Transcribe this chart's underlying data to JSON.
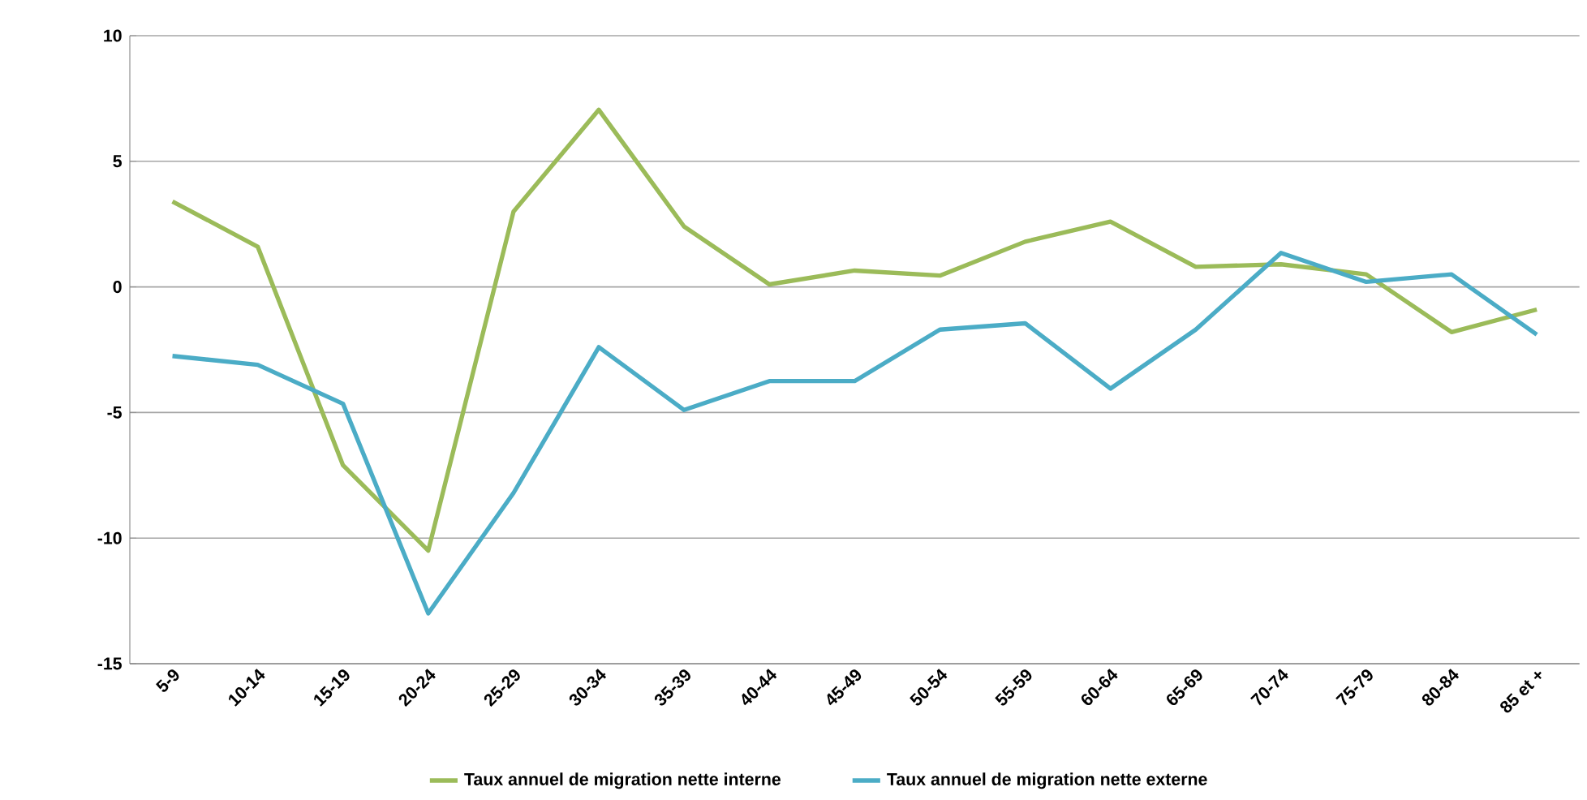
{
  "chart_data": {
    "type": "line",
    "categories": [
      "5-9",
      "10-14",
      "15-19",
      "20-24",
      "25-29",
      "30-34",
      "35-39",
      "40-44",
      "45-49",
      "50-54",
      "55-59",
      "60-64",
      "65-69",
      "70-74",
      "75-79",
      "80-84",
      "85 et +"
    ],
    "series": [
      {
        "name": "Taux annuel de migration nette interne",
        "color": "#9bbb59",
        "values": [
          3.4,
          1.6,
          -7.1,
          -10.5,
          3.0,
          7.05,
          2.4,
          0.1,
          0.65,
          0.45,
          1.8,
          2.6,
          0.8,
          0.9,
          0.5,
          -1.8,
          -0.9
        ]
      },
      {
        "name": "Taux annuel de migration nette externe",
        "color": "#4bacc6",
        "values": [
          -2.75,
          -3.1,
          -4.65,
          -13.0,
          -8.2,
          -2.4,
          -4.9,
          -3.75,
          -3.75,
          -1.7,
          -1.45,
          -4.05,
          -1.7,
          1.35,
          0.2,
          0.5,
          -1.9
        ]
      }
    ],
    "ylim": [
      -15,
      10
    ],
    "yticks": [
      -15,
      -10,
      -5,
      0,
      5,
      10
    ],
    "grid": "y",
    "legend": "bottom",
    "marker": "none",
    "line_style": "solid"
  }
}
